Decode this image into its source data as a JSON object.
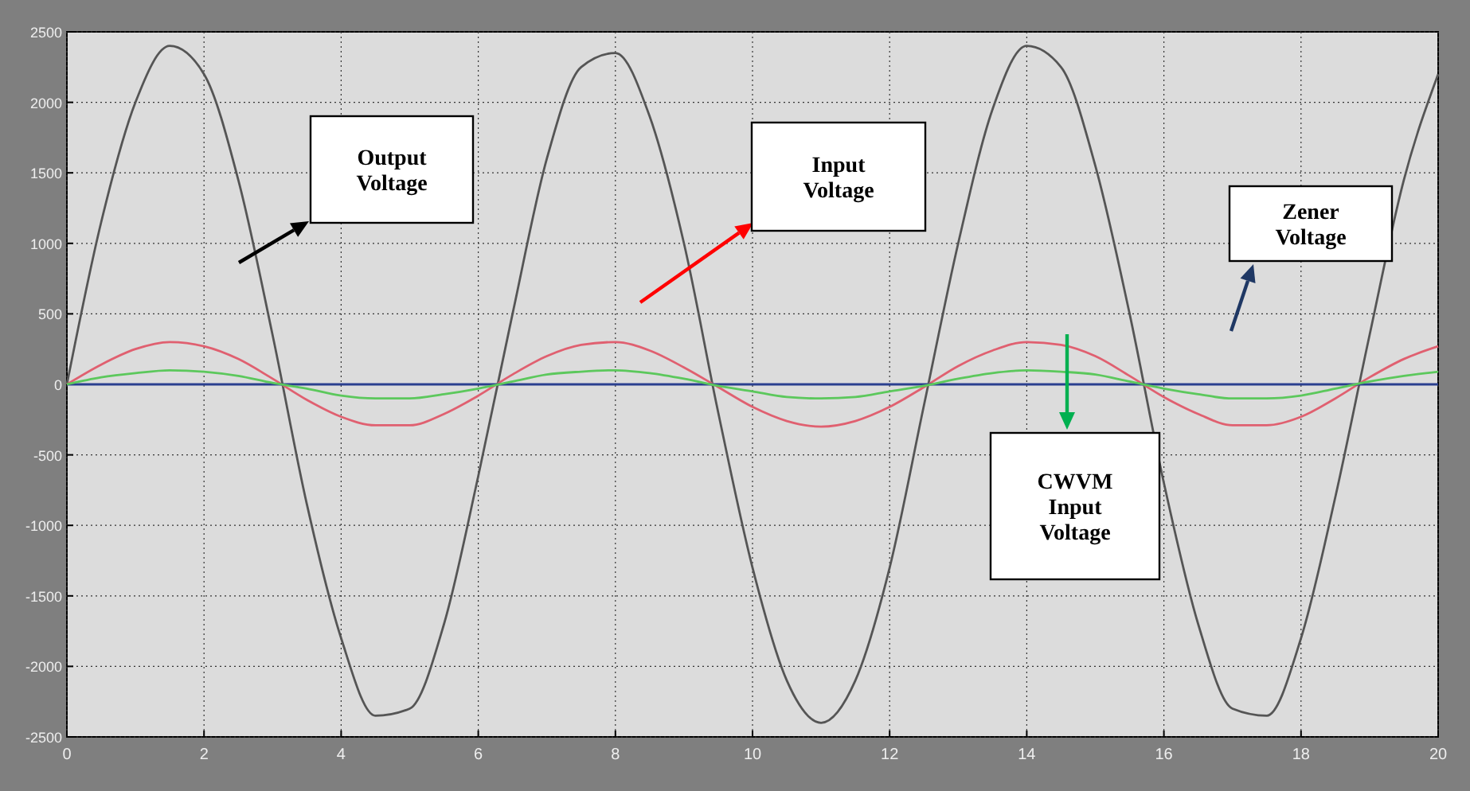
{
  "chart_data": {
    "type": "line",
    "x": [
      0,
      0.5,
      1,
      1.5,
      2,
      2.5,
      3,
      3.5,
      4,
      4.5,
      5,
      5.5,
      6,
      6.5,
      7,
      7.5,
      8,
      8.5,
      9,
      9.5,
      10,
      10.5,
      11,
      11.5,
      12,
      12.5,
      13,
      13.5,
      14,
      14.5,
      15,
      15.5,
      16,
      16.5,
      17,
      17.5,
      18,
      18.5,
      19,
      19.5,
      20
    ],
    "series": [
      {
        "color": "#555555",
        "values": [
          0,
          1150,
          2000,
          2400,
          2200,
          1450,
          350,
          -850,
          -1800,
          -2350,
          -2300,
          -1700,
          -650,
          500,
          1600,
          2250,
          2350,
          1900,
          1000,
          -200,
          -1300,
          -2100,
          -2400,
          -2100,
          -1300,
          -150,
          1000,
          1950,
          2400,
          2250,
          1550,
          500,
          -700,
          -1700,
          -2300,
          -2350,
          -1800,
          -800,
          350,
          1450,
          2200
        ]
      },
      {
        "color": "#e06070",
        "values": [
          0,
          140,
          250,
          300,
          270,
          180,
          40,
          -110,
          -230,
          -290,
          -290,
          -210,
          -80,
          70,
          200,
          280,
          300,
          240,
          120,
          -20,
          -160,
          -260,
          -300,
          -260,
          -160,
          -20,
          130,
          240,
          300,
          280,
          200,
          60,
          -90,
          -210,
          -290,
          -290,
          -230,
          -100,
          50,
          180,
          270
        ]
      },
      {
        "color": "#2a3f8f",
        "values": [
          0,
          0,
          0,
          0,
          0,
          0,
          0,
          0,
          0,
          0,
          0,
          0,
          0,
          0,
          0,
          0,
          0,
          0,
          0,
          0,
          0,
          0,
          0,
          0,
          0,
          0,
          0,
          0,
          0,
          0,
          0,
          0,
          0,
          0,
          0,
          0,
          0,
          0,
          0,
          0,
          0
        ]
      },
      {
        "color": "#5cc85c",
        "values": [
          0,
          50,
          80,
          100,
          90,
          60,
          10,
          -30,
          -80,
          -100,
          -100,
          -70,
          -30,
          20,
          70,
          90,
          100,
          80,
          40,
          -10,
          -50,
          -90,
          -100,
          -90,
          -50,
          -10,
          40,
          80,
          100,
          90,
          70,
          20,
          -30,
          -70,
          -100,
          -100,
          -80,
          -30,
          20,
          60,
          90
        ]
      }
    ],
    "annotations": [
      "Output Voltage",
      "Input Voltage",
      "Zener Voltage",
      "CWVM Input Voltage"
    ],
    "xlim": [
      0,
      20
    ],
    "xticks": [
      0,
      2,
      4,
      6,
      8,
      10,
      12,
      14,
      16,
      18,
      20
    ],
    "ylim": [
      -2500,
      2500
    ],
    "yticks": [
      -2500,
      -2000,
      -1500,
      -1000,
      -500,
      0,
      500,
      1000,
      1500,
      2000,
      2500
    ],
    "grid": true
  }
}
